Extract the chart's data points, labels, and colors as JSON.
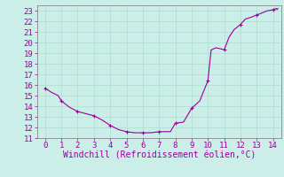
{
  "title": "",
  "xlabel": "Windchill (Refroidissement éolien,°C)",
  "ylabel": "",
  "bg_color": "#cceee8",
  "line_color": "#990099",
  "marker_color": "#990099",
  "grid_color": "#aaddcc",
  "axis_color": "#777777",
  "tick_color": "#990099",
  "xlim": [
    -0.5,
    14.5
  ],
  "ylim": [
    11,
    23.5
  ],
  "xticks": [
    0,
    1,
    2,
    3,
    4,
    5,
    6,
    7,
    8,
    9,
    10,
    11,
    12,
    13,
    14
  ],
  "yticks": [
    11,
    12,
    13,
    14,
    15,
    16,
    17,
    18,
    19,
    20,
    21,
    22,
    23
  ],
  "x": [
    0,
    0.4,
    0.8,
    1.0,
    1.5,
    2.0,
    2.5,
    3.0,
    3.5,
    4.0,
    4.5,
    5.0,
    5.5,
    6.0,
    6.5,
    7.0,
    7.3,
    7.7,
    8.0,
    8.5,
    9.0,
    9.5,
    10.0,
    10.2,
    10.5,
    10.8,
    11.0,
    11.3,
    11.6,
    12.0,
    12.3,
    12.7,
    13.0,
    13.2,
    13.5,
    13.7,
    13.9,
    14.0,
    14.1,
    14.2,
    14.25,
    14.3
  ],
  "y": [
    15.7,
    15.3,
    15.0,
    14.5,
    13.9,
    13.5,
    13.3,
    13.1,
    12.7,
    12.2,
    11.8,
    11.6,
    11.5,
    11.5,
    11.5,
    11.6,
    11.6,
    11.6,
    12.4,
    12.5,
    13.8,
    14.5,
    16.4,
    19.3,
    19.5,
    19.4,
    19.3,
    20.5,
    21.2,
    21.7,
    22.2,
    22.4,
    22.6,
    22.7,
    22.9,
    23.0,
    23.05,
    23.1,
    23.15,
    23.2,
    23.1,
    23.2
  ],
  "marker_x": [
    0,
    1,
    2,
    3,
    4,
    5,
    6,
    7,
    8,
    9,
    10,
    11,
    12,
    13,
    14
  ],
  "marker_y": [
    15.7,
    14.5,
    13.5,
    13.1,
    12.2,
    11.6,
    11.5,
    11.6,
    12.4,
    13.8,
    16.4,
    19.3,
    21.7,
    22.6,
    23.1
  ],
  "font_size": 6.5,
  "xlabel_font_size": 7.0
}
